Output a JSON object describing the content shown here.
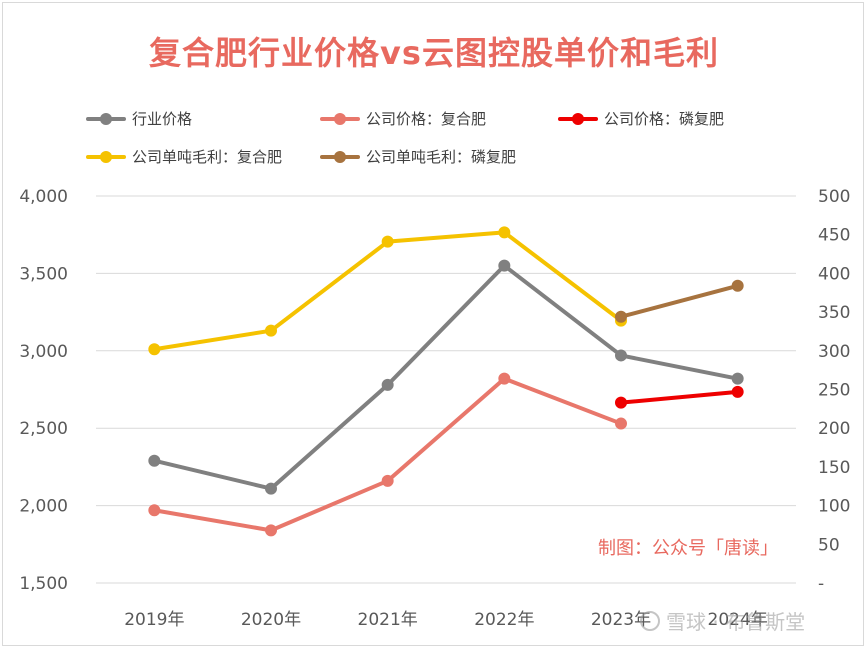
{
  "chart_data": {
    "type": "line",
    "title": "复合肥行业价格vs云图控股单价和毛利",
    "categories": [
      "2019年",
      "2020年",
      "2021年",
      "2022年",
      "2023年",
      "2024年"
    ],
    "left_axis": {
      "ylim": [
        1500,
        4000
      ],
      "ticks": [
        "1,500",
        "2,000",
        "2,500",
        "3,000",
        "3,500",
        "4,000"
      ],
      "tick_values": [
        1500,
        2000,
        2500,
        3000,
        3500,
        4000
      ]
    },
    "right_axis": {
      "ylim": [
        0,
        500
      ],
      "ticks": [
        "-",
        "50",
        "100",
        "150",
        "200",
        "250",
        "300",
        "350",
        "400",
        "450",
        "500"
      ],
      "tick_values": [
        0,
        50,
        100,
        150,
        200,
        250,
        300,
        350,
        400,
        450,
        500
      ]
    },
    "gridlines": true,
    "legend_position": "top",
    "series": [
      {
        "name": "行业价格",
        "axis": "left",
        "color": "#808080",
        "values": [
          2290,
          2110,
          2780,
          3550,
          2970,
          2820
        ]
      },
      {
        "name": "公司价格：复合肥",
        "axis": "left",
        "color": "#e8776b",
        "values": [
          1970,
          1840,
          2160,
          2820,
          2530,
          null
        ]
      },
      {
        "name": "公司价格：磷复肥",
        "axis": "left",
        "color": "#ee0000",
        "values": [
          null,
          null,
          null,
          null,
          2665,
          2735
        ]
      },
      {
        "name": "公司单吨毛利：复合肥",
        "axis": "right",
        "color": "#f5c200",
        "values": [
          302,
          326,
          441,
          453,
          339,
          null
        ]
      },
      {
        "name": "公司单吨毛利：磷复肥",
        "axis": "right",
        "color": "#a7733f",
        "values": [
          null,
          null,
          null,
          null,
          344,
          384
        ]
      }
    ],
    "annotation": "制图：公众号「唐读」"
  },
  "watermark": "雪球 · 布鲁斯堂"
}
